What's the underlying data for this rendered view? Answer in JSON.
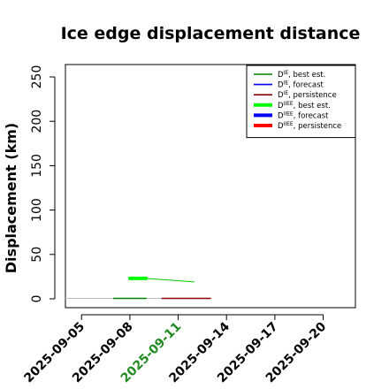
{
  "chart_data": {
    "type": "line",
    "title": "Ice edge displacement distance",
    "xlabel": "",
    "ylabel": "Displacement (km)",
    "ylim": [
      0,
      260
    ],
    "xlim": [
      "2025-09-04",
      "2025-09-22"
    ],
    "y_ticks": [
      0,
      50,
      100,
      150,
      200,
      250
    ],
    "x_ticks": [
      "2025-09-05",
      "2025-09-08",
      "2025-09-11",
      "2025-09-14",
      "2025-09-17",
      "2025-09-20"
    ],
    "highlighted_x_tick": "2025-09-11",
    "highlight_color": "#228b22",
    "grid": false,
    "legend_position": "top-right",
    "series": [
      {
        "name": "D^IE, best est.",
        "color": "#008000",
        "width": "thin",
        "x": [
          "2025-09-07",
          "2025-09-09"
        ],
        "y": [
          0.5,
          0.5
        ]
      },
      {
        "name": "D^IE, forecast",
        "color": "#0000ff",
        "width": "thin",
        "x": [],
        "y": []
      },
      {
        "name": "D^IE, persistence",
        "color": "#8b0000",
        "width": "thin",
        "x": [
          "2025-09-10",
          "2025-09-13"
        ],
        "y": [
          0.5,
          0.5
        ]
      },
      {
        "name": "D^IIEE, best est.",
        "color": "#00ff00",
        "width": "thick",
        "x": [
          "2025-09-08",
          "2025-09-09"
        ],
        "y": [
          23,
          23
        ]
      },
      {
        "name": "D^IIEE, forecast",
        "color": "#0000ff",
        "width": "thick",
        "x": [],
        "y": []
      },
      {
        "name": "D^IIEE, persistence",
        "color": "#ff0000",
        "width": "thick",
        "x": [],
        "y": []
      }
    ],
    "extra_lines": [
      {
        "color": "#00cc00",
        "x": [
          "2025-09-09",
          "2025-09-12"
        ],
        "y": [
          23,
          19
        ]
      },
      {
        "color": "#c0c0c0",
        "x": [
          "2025-09-04",
          "2025-09-07"
        ],
        "y": [
          0.5,
          0.5
        ]
      },
      {
        "color": "#c0c0c0",
        "x": [
          "2025-09-09",
          "2025-09-10"
        ],
        "y": [
          0.5,
          0.5
        ]
      }
    ],
    "legend": [
      {
        "base": "D",
        "sup": "IE",
        "suffix": ", best est.",
        "color": "#008000",
        "width": "thin"
      },
      {
        "base": "D",
        "sup": "IE",
        "suffix": ", forecast",
        "color": "#0000ff",
        "width": "thin"
      },
      {
        "base": "D",
        "sup": "IE",
        "suffix": ", persistence",
        "color": "#8b0000",
        "width": "thin"
      },
      {
        "base": "D",
        "sup": "IIEE",
        "suffix": ", best est.",
        "color": "#00ff00",
        "width": "thick"
      },
      {
        "base": "D",
        "sup": "IIEE",
        "suffix": ", forecast",
        "color": "#0000ff",
        "width": "thick"
      },
      {
        "base": "D",
        "sup": "IIEE",
        "suffix": ", persistence",
        "color": "#ff0000",
        "width": "thick"
      }
    ]
  }
}
